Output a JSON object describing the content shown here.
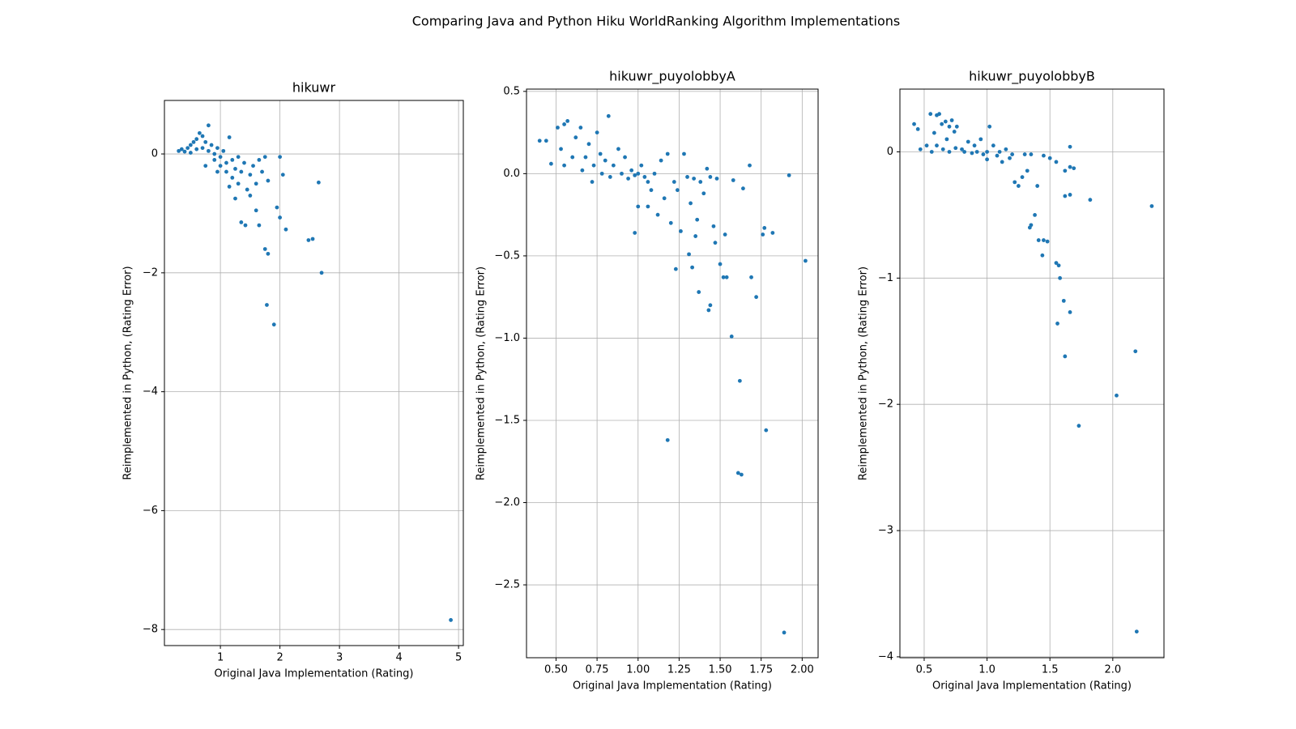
{
  "title": "Comparing Java and Python Hiku WorldRanking Algorithm Implementations",
  "chart_data": [
    {
      "type": "scatter",
      "title": "hikuwr",
      "xlabel": "Original Java Implementation (Rating)",
      "ylabel": "Reimplemented in Python, (Rating Error)",
      "color": "#1f77b4",
      "grid": true,
      "xlim": [
        0.06,
        5.08
      ],
      "ylim": [
        -8.27,
        0.9
      ],
      "xticks": [
        1,
        2,
        3,
        4,
        5
      ],
      "yticks": [
        {
          "value": -8,
          "label": "−8"
        },
        {
          "value": -6,
          "label": "−6"
        },
        {
          "value": -4,
          "label": "−4"
        },
        {
          "value": -2,
          "label": "−2"
        },
        0
      ],
      "x": [
        0.3,
        0.35,
        0.4,
        0.45,
        0.5,
        0.5,
        0.55,
        0.6,
        0.6,
        0.65,
        0.7,
        0.7,
        0.75,
        0.8,
        0.8,
        0.85,
        0.9,
        0.9,
        0.95,
        1.0,
        1.0,
        1.05,
        1.1,
        1.1,
        1.15,
        1.2,
        1.2,
        1.25,
        1.3,
        1.3,
        1.35,
        1.4,
        1.45,
        1.5,
        1.5,
        1.55,
        1.6,
        1.65,
        1.7,
        1.75,
        1.8,
        0.75,
        0.95,
        1.15,
        1.25,
        1.35,
        1.42,
        1.6,
        1.65,
        1.75,
        1.8,
        1.78,
        1.9,
        1.95,
        2.0,
        2.0,
        2.05,
        2.1,
        2.48,
        2.55,
        2.65,
        2.7,
        4.87
      ],
      "values": [
        0.05,
        0.08,
        0.04,
        0.1,
        0.15,
        0.02,
        0.2,
        0.25,
        0.08,
        0.35,
        0.3,
        0.1,
        0.2,
        0.48,
        0.05,
        0.15,
        0.0,
        -0.1,
        0.1,
        -0.05,
        -0.2,
        0.05,
        -0.15,
        -0.3,
        0.28,
        -0.1,
        -0.4,
        -0.25,
        -0.05,
        -0.5,
        -0.3,
        -0.15,
        -0.6,
        -0.35,
        -0.7,
        -0.2,
        -0.5,
        -0.1,
        -0.3,
        -0.05,
        -0.45,
        -0.2,
        -0.3,
        -0.55,
        -0.75,
        -1.15,
        -1.2,
        -0.95,
        -1.2,
        -1.6,
        -1.68,
        -2.54,
        -2.87,
        -0.9,
        -1.07,
        -0.05,
        -0.35,
        -1.27,
        -1.45,
        -1.43,
        -0.48,
        -2.0,
        -7.84
      ]
    },
    {
      "type": "scatter",
      "title": "hikuwr_puyolobbyA",
      "xlabel": "Original Java Implementation (Rating)",
      "ylabel": "Reimplemented in Python, (Rating Error)",
      "color": "#1f77b4",
      "grid": true,
      "xlim": [
        0.32,
        2.097
      ],
      "ylim": [
        -2.943,
        0.514
      ],
      "xticks": [
        {
          "value": 0.5,
          "label": "0.50"
        },
        0.75,
        {
          "value": 1.0,
          "label": "1.00"
        },
        1.25,
        {
          "value": 1.5,
          "label": "1.50"
        },
        1.75,
        {
          "value": 2.0,
          "label": "2.00"
        }
      ],
      "yticks": [
        {
          "value": -2.5,
          "label": "−2.5"
        },
        {
          "value": -2.0,
          "label": "−2.0"
        },
        {
          "value": -1.5,
          "label": "−1.5"
        },
        {
          "value": -1.0,
          "label": "−1.0"
        },
        {
          "value": -0.5,
          "label": "−0.5"
        },
        {
          "value": 0.0,
          "label": "0.0"
        },
        0.5
      ],
      "x": [
        0.4,
        0.44,
        0.47,
        0.51,
        0.53,
        0.55,
        0.57,
        0.55,
        0.6,
        0.62,
        0.65,
        0.66,
        0.68,
        0.7,
        0.72,
        0.73,
        0.75,
        0.77,
        0.78,
        0.8,
        0.82,
        0.83,
        0.85,
        0.88,
        0.9,
        0.92,
        0.94,
        0.96,
        0.98,
        1.0,
        1.0,
        1.02,
        1.04,
        1.06,
        1.08,
        1.1,
        1.12,
        1.14,
        1.16,
        1.18,
        1.2,
        1.22,
        1.24,
        1.26,
        1.28,
        1.3,
        1.32,
        1.34,
        1.36,
        1.38,
        1.4,
        1.42,
        1.44,
        1.46,
        1.48,
        1.5,
        0.98,
        1.06,
        1.18,
        1.23,
        1.31,
        1.33,
        1.35,
        1.37,
        1.43,
        1.44,
        1.47,
        1.52,
        1.53,
        1.54,
        1.57,
        1.58,
        1.61,
        1.62,
        1.63,
        1.64,
        1.68,
        1.69,
        1.72,
        1.76,
        1.77,
        1.78,
        1.82,
        1.89,
        1.92,
        2.02
      ],
      "values": [
        0.2,
        0.2,
        0.06,
        0.28,
        0.15,
        0.3,
        0.32,
        0.05,
        0.1,
        0.22,
        0.28,
        0.02,
        0.1,
        0.18,
        -0.05,
        0.05,
        0.25,
        0.12,
        0.0,
        0.08,
        0.35,
        -0.02,
        0.05,
        0.15,
        0.0,
        0.1,
        -0.03,
        0.02,
        -0.01,
        0.0,
        -0.2,
        0.05,
        -0.02,
        -0.05,
        -0.1,
        0.0,
        -0.25,
        0.08,
        -0.15,
        0.12,
        -0.3,
        -0.05,
        -0.1,
        -0.35,
        0.12,
        -0.02,
        -0.18,
        -0.03,
        -0.28,
        -0.05,
        -0.12,
        0.03,
        -0.02,
        -0.32,
        -0.03,
        -0.55,
        -0.36,
        -0.2,
        -1.62,
        -0.58,
        -0.49,
        -0.57,
        -0.38,
        -0.72,
        -0.83,
        -0.8,
        -0.42,
        -0.63,
        -0.37,
        -0.63,
        -0.99,
        -0.04,
        -1.82,
        -1.26,
        -1.83,
        -0.09,
        0.05,
        -0.63,
        -0.75,
        -0.37,
        -0.33,
        -1.56,
        -0.36,
        -2.79,
        -0.01,
        -0.53
      ]
    },
    {
      "type": "scatter",
      "title": "hikuwr_puyolobbyB",
      "xlabel": "Original Java Implementation (Rating)",
      "ylabel": "Reimplemented in Python, (Rating Error)",
      "color": "#1f77b4",
      "grid": true,
      "xlim": [
        0.307,
        2.407
      ],
      "ylim": [
        -4.007,
        0.497
      ],
      "xticks": [
        0.5,
        {
          "value": 1.0,
          "label": "1.0"
        },
        1.5,
        {
          "value": 2.0,
          "label": "2.0"
        }
      ],
      "yticks": [
        {
          "value": -4,
          "label": "−4"
        },
        {
          "value": -3,
          "label": "−3"
        },
        {
          "value": -2,
          "label": "−2"
        },
        {
          "value": -1,
          "label": "−1"
        },
        0
      ],
      "x": [
        0.42,
        0.45,
        0.47,
        0.52,
        0.55,
        0.56,
        0.58,
        0.6,
        0.6,
        0.62,
        0.64,
        0.65,
        0.67,
        0.68,
        0.7,
        0.7,
        0.72,
        0.74,
        0.75,
        0.76,
        0.8,
        0.82,
        0.85,
        0.88,
        0.9,
        0.92,
        0.95,
        0.97,
        1.0,
        1.0,
        1.02,
        1.05,
        1.08,
        1.1,
        1.12,
        1.15,
        1.18,
        1.2,
        1.22,
        1.25,
        1.28,
        1.3,
        1.32,
        1.35,
        1.4,
        1.45,
        1.5,
        1.55,
        1.34,
        1.35,
        1.38,
        1.41,
        1.44,
        1.45,
        1.48,
        1.55,
        1.57,
        1.58,
        1.56,
        1.61,
        1.62,
        1.66,
        1.73,
        1.62,
        1.66,
        1.62,
        1.66,
        1.69,
        1.66,
        1.82,
        2.03,
        2.18,
        2.19,
        2.31
      ],
      "values": [
        0.22,
        0.18,
        0.02,
        0.05,
        0.3,
        0.0,
        0.15,
        0.29,
        0.05,
        0.3,
        0.22,
        0.02,
        0.24,
        0.1,
        0.2,
        0.0,
        0.25,
        0.16,
        0.03,
        0.2,
        0.02,
        0.0,
        0.08,
        -0.01,
        0.05,
        0.0,
        0.1,
        -0.02,
        0.0,
        -0.06,
        0.2,
        0.05,
        -0.03,
        0.0,
        -0.08,
        0.02,
        -0.05,
        -0.02,
        -0.24,
        -0.27,
        -0.2,
        -0.02,
        -0.15,
        -0.02,
        -0.27,
        -0.03,
        -0.05,
        -0.08,
        -0.6,
        -0.58,
        -0.5,
        -0.7,
        -0.82,
        -0.7,
        -0.71,
        -0.88,
        -0.9,
        -1.0,
        -1.36,
        -1.18,
        -1.62,
        -1.27,
        -2.17,
        -0.35,
        -0.34,
        -0.15,
        -0.12,
        -0.13,
        0.04,
        -0.38,
        -1.93,
        -1.58,
        -3.8,
        -0.43
      ]
    }
  ]
}
